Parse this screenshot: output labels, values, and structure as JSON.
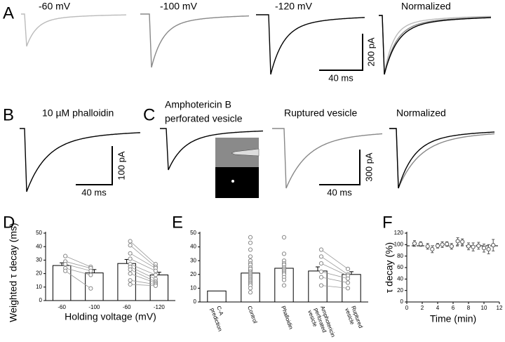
{
  "panels": {
    "A": {
      "letter": "A",
      "titles": [
        "-60 mV",
        "-100 mV",
        "-120 mV",
        "Normalized"
      ],
      "scale_y": "200 pA",
      "scale_x": "40 ms"
    },
    "B": {
      "letter": "B",
      "title": "10 µM phalloidin",
      "scale_y": "100 pA",
      "scale_x": "40 ms"
    },
    "C": {
      "letter": "C",
      "titles": [
        "Amphotericin B",
        "perforated vesicle",
        "Ruptured vesicle",
        "Normalized"
      ],
      "scale_y": "300 pA",
      "scale_x": "40 ms"
    }
  },
  "chart_data": [
    {
      "type": "bar",
      "panel": "D",
      "ylabel": "Weighted τ decay (ms)",
      "xlabel": "Holding voltage (mV)",
      "categories": [
        "-60",
        "-100",
        "-60",
        "-120"
      ],
      "values": [
        26,
        20.5,
        27.5,
        19
      ],
      "errors": [
        2,
        2.5,
        3,
        2
      ],
      "points": [
        [
          33,
          29,
          27,
          24,
          22
        ],
        [
          25,
          24,
          22,
          19,
          9
        ],
        [
          44,
          41,
          35,
          31,
          27,
          25,
          23,
          20,
          15,
          12
        ],
        [
          27,
          25,
          24,
          22,
          19,
          16,
          14,
          13,
          12,
          11
        ]
      ],
      "paired": [
        [
          0,
          1
        ],
        [
          2,
          3
        ]
      ],
      "ylim": [
        0,
        50
      ],
      "yticks": [
        0,
        10,
        20,
        30,
        40,
        50
      ],
      "color": "#ffffff"
    },
    {
      "type": "bar",
      "panel": "E",
      "categories": [
        [
          "C-A",
          "prediction"
        ],
        [
          "Control"
        ],
        [
          "Phalloidin"
        ],
        [
          "Amphotericin",
          "perforated",
          "vesicle"
        ],
        [
          "Ruptured",
          "vesicle"
        ]
      ],
      "values": [
        8,
        21,
        24.5,
        22.5,
        20
      ],
      "errors": [
        null,
        2,
        2,
        3,
        2
      ],
      "points": [
        [],
        [
          47,
          43,
          38,
          33,
          30,
          28,
          27,
          25,
          24,
          22,
          21,
          20,
          19,
          18,
          17,
          16,
          15,
          14,
          13,
          12,
          10,
          7
        ],
        [
          47,
          35,
          30,
          28,
          27,
          25,
          24,
          23,
          22,
          21,
          20,
          18,
          16,
          12
        ],
        [
          38,
          33,
          28,
          22,
          18,
          12
        ],
        [
          24,
          20,
          19,
          17,
          14,
          10
        ]
      ],
      "paired": [
        [
          3,
          4
        ]
      ],
      "ylim": [
        0,
        50
      ],
      "yticks": [
        0,
        10,
        20,
        30,
        40,
        50
      ],
      "color": "#ffffff"
    },
    {
      "type": "scatter",
      "panel": "F",
      "ylabel": "τ decay (%)",
      "xlabel": "Time (min)",
      "x": [
        1,
        1.8,
        2.7,
        3.3,
        4,
        4.6,
        5.2,
        5.8,
        6.6,
        7.2,
        8,
        8.6,
        9.3,
        10,
        10.6,
        11.2
      ],
      "values": [
        102,
        101,
        97,
        92,
        98,
        100,
        101,
        97,
        106,
        105,
        97,
        96,
        98,
        94,
        92,
        99
      ],
      "errors": [
        5,
        4,
        5,
        6,
        4,
        5,
        4,
        5,
        6,
        5,
        6,
        7,
        6,
        7,
        8,
        10
      ],
      "reference_line": 98,
      "xlim": [
        0,
        12
      ],
      "xticks": [
        0,
        2,
        4,
        6,
        8,
        10,
        12
      ],
      "ylim": [
        0,
        120
      ],
      "yticks": [
        0,
        20,
        40,
        60,
        80,
        100,
        120
      ],
      "color": "#ffffff"
    }
  ]
}
